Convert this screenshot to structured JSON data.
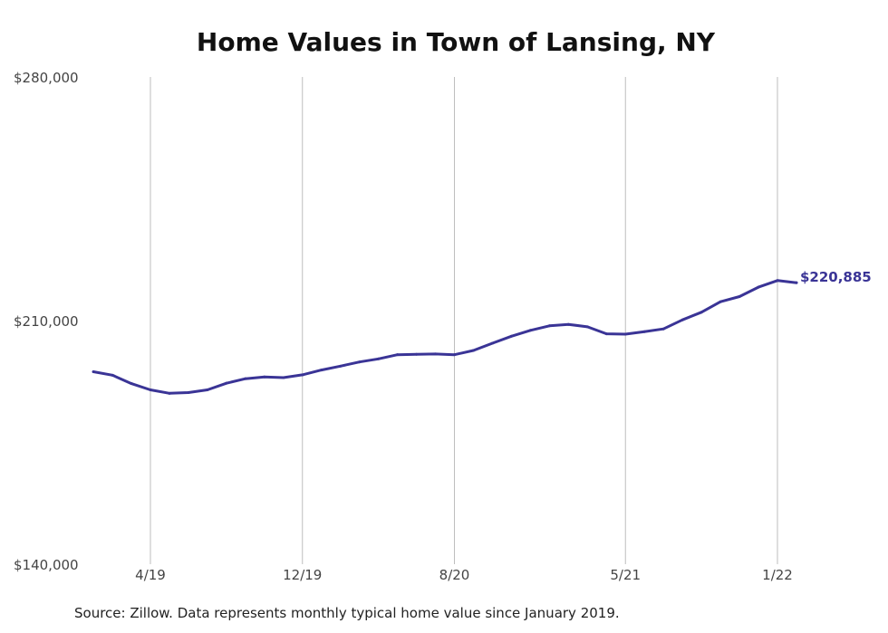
{
  "colors": {
    "line": "#3a3496",
    "grid": "#bdbdbd",
    "text": "#444444"
  },
  "chart_data": {
    "type": "line",
    "title": "Home Values in Town of Lansing, NY",
    "xlabel": "",
    "ylabel": "",
    "ylim": [
      140000,
      280000
    ],
    "y_ticks": [
      {
        "value": 280000,
        "label": "$280,000"
      },
      {
        "value": 210000,
        "label": "$210,000"
      },
      {
        "value": 140000,
        "label": "$140,000"
      }
    ],
    "x_ticks": [
      {
        "date": "2019-04",
        "label": "4/19"
      },
      {
        "date": "2019-12",
        "label": "12/19"
      },
      {
        "date": "2020-08",
        "label": "8/20"
      },
      {
        "date": "2021-05",
        "label": "5/21"
      },
      {
        "date": "2022-01",
        "label": "1/22"
      }
    ],
    "grid": "vertical",
    "series": [
      {
        "x": [
          "2019-01",
          "2019-02",
          "2019-03",
          "2019-04",
          "2019-05",
          "2019-06",
          "2019-07",
          "2019-08",
          "2019-09",
          "2019-10",
          "2019-11",
          "2019-12",
          "2020-01",
          "2020-02",
          "2020-03",
          "2020-04",
          "2020-05",
          "2020-06",
          "2020-07",
          "2020-08",
          "2020-09",
          "2020-10",
          "2020-11",
          "2020-12",
          "2021-01",
          "2021-02",
          "2021-03",
          "2021-04",
          "2021-05",
          "2021-06",
          "2021-07",
          "2021-08",
          "2021-09",
          "2021-10",
          "2021-11",
          "2021-12",
          "2022-01",
          "2022-02"
        ],
        "values": [
          195300,
          194300,
          191900,
          190100,
          189100,
          189300,
          190100,
          192000,
          193300,
          193800,
          193600,
          194400,
          195800,
          196900,
          198100,
          199000,
          200200,
          200300,
          200400,
          200200,
          201400,
          203500,
          205500,
          207200,
          208500,
          208900,
          208200,
          206200,
          206100,
          206800,
          207600,
          210200,
          212400,
          215400,
          216900,
          219600,
          221500,
          220885
        ]
      }
    ],
    "end_label": "$220,885"
  },
  "source": "Source: Zillow. Data represents monthly typical home value since January 2019."
}
